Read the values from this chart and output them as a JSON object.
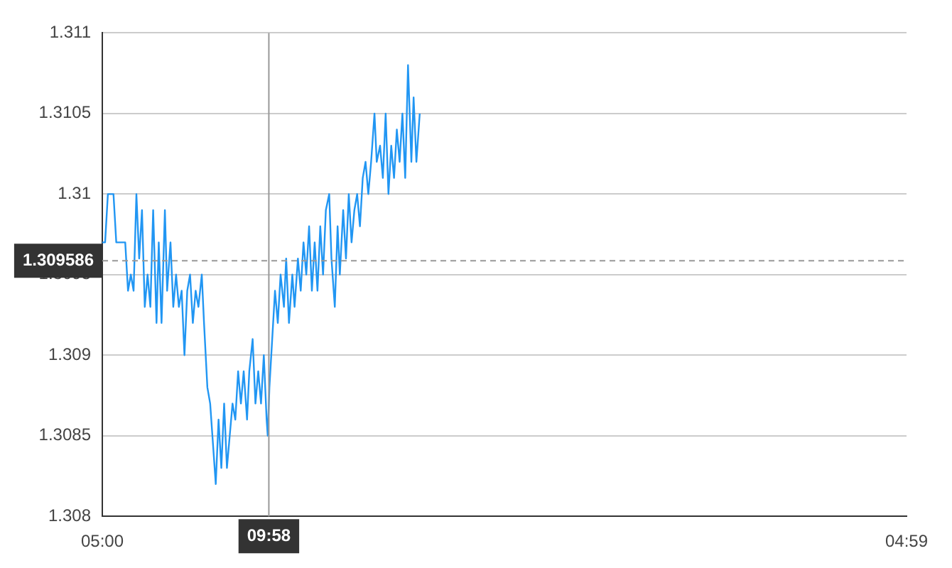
{
  "chart_data": {
    "type": "line",
    "x": [
      "--01-01T05:00",
      "--01-01T05:05",
      "--01-01T05:10",
      "--01-01T05:20",
      "--01-01T05:25",
      "--01-01T05:41",
      "--01-01T05:46",
      "--01-01T05:51",
      "--01-01T05:56",
      "--01-01T06:01",
      "--01-01T06:06",
      "--01-01T06:11",
      "--01-01T06:16",
      "--01-01T06:21",
      "--01-01T06:26",
      "--01-01T06:31",
      "--01-01T06:37",
      "--01-01T06:41",
      "--01-01T06:46",
      "--01-01T06:52",
      "--01-01T06:56",
      "--01-01T07:02",
      "--01-01T07:07",
      "--01-01T07:12",
      "--01-01T07:17",
      "--01-01T07:22",
      "--01-01T07:27",
      "--01-01T07:32",
      "--01-01T07:37",
      "--01-01T07:42",
      "--01-01T07:47",
      "--01-01T07:52",
      "--01-01T07:58",
      "--01-01T08:02",
      "--01-01T08:08",
      "--01-01T08:13",
      "--01-01T08:17",
      "--01-01T08:23",
      "--01-01T08:28",
      "--01-01T08:33",
      "--01-01T08:38",
      "--01-01T08:43",
      "--01-01T08:48",
      "--01-01T08:53",
      "--01-01T08:58",
      "--01-01T09:03",
      "--01-01T09:08",
      "--01-01T09:13",
      "--01-01T09:19",
      "--01-01T09:23",
      "--01-01T09:29",
      "--01-01T09:34",
      "--01-01T09:39",
      "--01-01T09:44",
      "--01-01T09:49",
      "--01-01T09:54",
      "--01-01T09:56",
      "--01-01T09:59",
      "--01-01T10:04",
      "--01-01T10:09",
      "--01-01T10:14",
      "--01-01T10:19",
      "--01-01T10:25",
      "--01-01T10:29",
      "--01-01T10:34",
      "--01-01T10:40",
      "--01-01T10:44",
      "--01-01T10:50",
      "--01-01T10:55",
      "--01-01T11:00",
      "--01-01T11:05",
      "--01-01T11:10",
      "--01-01T11:15",
      "--01-01T11:20",
      "--01-01T11:25",
      "--01-01T11:30",
      "--01-01T11:35",
      "--01-01T11:40",
      "--01-01T11:46",
      "--01-01T11:50",
      "--01-01T11:56",
      "--01-01T12:01",
      "--01-01T12:05",
      "--01-01T12:11",
      "--01-01T12:16",
      "--01-01T12:21",
      "--01-01T12:26",
      "--01-01T12:31",
      "--01-01T12:36",
      "--01-01T12:41",
      "--01-01T12:46",
      "--01-01T12:51",
      "--01-01T12:56",
      "--01-01T13:01",
      "--01-01T13:07",
      "--01-01T13:11",
      "--01-01T13:17",
      "--01-01T13:22",
      "--01-01T13:27",
      "--01-01T13:32",
      "--01-01T13:37",
      "--01-01T13:42",
      "--01-01T13:47",
      "--01-01T13:52",
      "--01-01T13:57",
      "--01-01T14:02",
      "--01-01T14:07",
      "--01-01T14:13",
      "--01-01T14:17",
      "--01-01T14:22",
      "--01-01T14:28"
    ],
    "series": [
      {
        "color": "#2196f3",
        "values": [
          1.3097,
          1.3097,
          1.31,
          1.31,
          1.3097,
          1.3097,
          1.3094,
          1.3095,
          1.3094,
          1.31,
          1.3096,
          1.3099,
          1.3093,
          1.3095,
          1.3093,
          1.3099,
          1.3092,
          1.3097,
          1.3092,
          1.3099,
          1.3094,
          1.3097,
          1.3093,
          1.3095,
          1.3093,
          1.3094,
          1.309,
          1.3094,
          1.3095,
          1.3092,
          1.3094,
          1.3093,
          1.3095,
          1.3092,
          1.3088,
          1.3087,
          1.3085,
          1.3082,
          1.3086,
          1.3083,
          1.3087,
          1.3083,
          1.3085,
          1.3087,
          1.3086,
          1.3089,
          1.3087,
          1.3089,
          1.3086,
          1.3089,
          1.3091,
          1.3087,
          1.3089,
          1.3087,
          1.309,
          1.3086,
          1.3085,
          1.3088,
          1.3091,
          1.3094,
          1.3092,
          1.3095,
          1.3093,
          1.3096,
          1.3092,
          1.3095,
          1.3093,
          1.3096,
          1.3094,
          1.3097,
          1.3095,
          1.3098,
          1.3094,
          1.3097,
          1.3094,
          1.3098,
          1.3095,
          1.3099,
          1.31,
          1.3096,
          1.3093,
          1.3098,
          1.3095,
          1.3099,
          1.3096,
          1.31,
          1.3097,
          1.3099,
          1.31,
          1.3098,
          1.3101,
          1.3102,
          1.31,
          1.3102,
          1.3105,
          1.3102,
          1.3103,
          1.3101,
          1.3105,
          1.31,
          1.3103,
          1.3101,
          1.3104,
          1.3102,
          1.3105,
          1.3101,
          1.3108,
          1.3102,
          1.3106,
          1.3102,
          1.3105
        ]
      }
    ],
    "xlim": [
      "--01-01T05:00",
      "--01-02T04:59"
    ],
    "xticks": [
      {
        "value": "--01-01T05:00",
        "label": "05:00"
      },
      {
        "value": "--01-02T04:59",
        "label": "04:59"
      }
    ],
    "ylim": [
      1.308,
      1.311
    ],
    "yticks": [
      1.308,
      1.3085,
      1.309,
      1.3095,
      1.31,
      1.3105,
      1.311
    ],
    "grid": "y",
    "legend": false,
    "marker": "none",
    "line_style": "solid",
    "ref_lines": [
      {
        "axis": "x",
        "value": "--01-01T09:58",
        "label": "09:58",
        "color": "#999999",
        "line_style": "solid"
      },
      {
        "axis": "y",
        "value": 1.309586,
        "label": "1.309586",
        "color": "#999999",
        "line_style": "dashed"
      }
    ]
  }
}
